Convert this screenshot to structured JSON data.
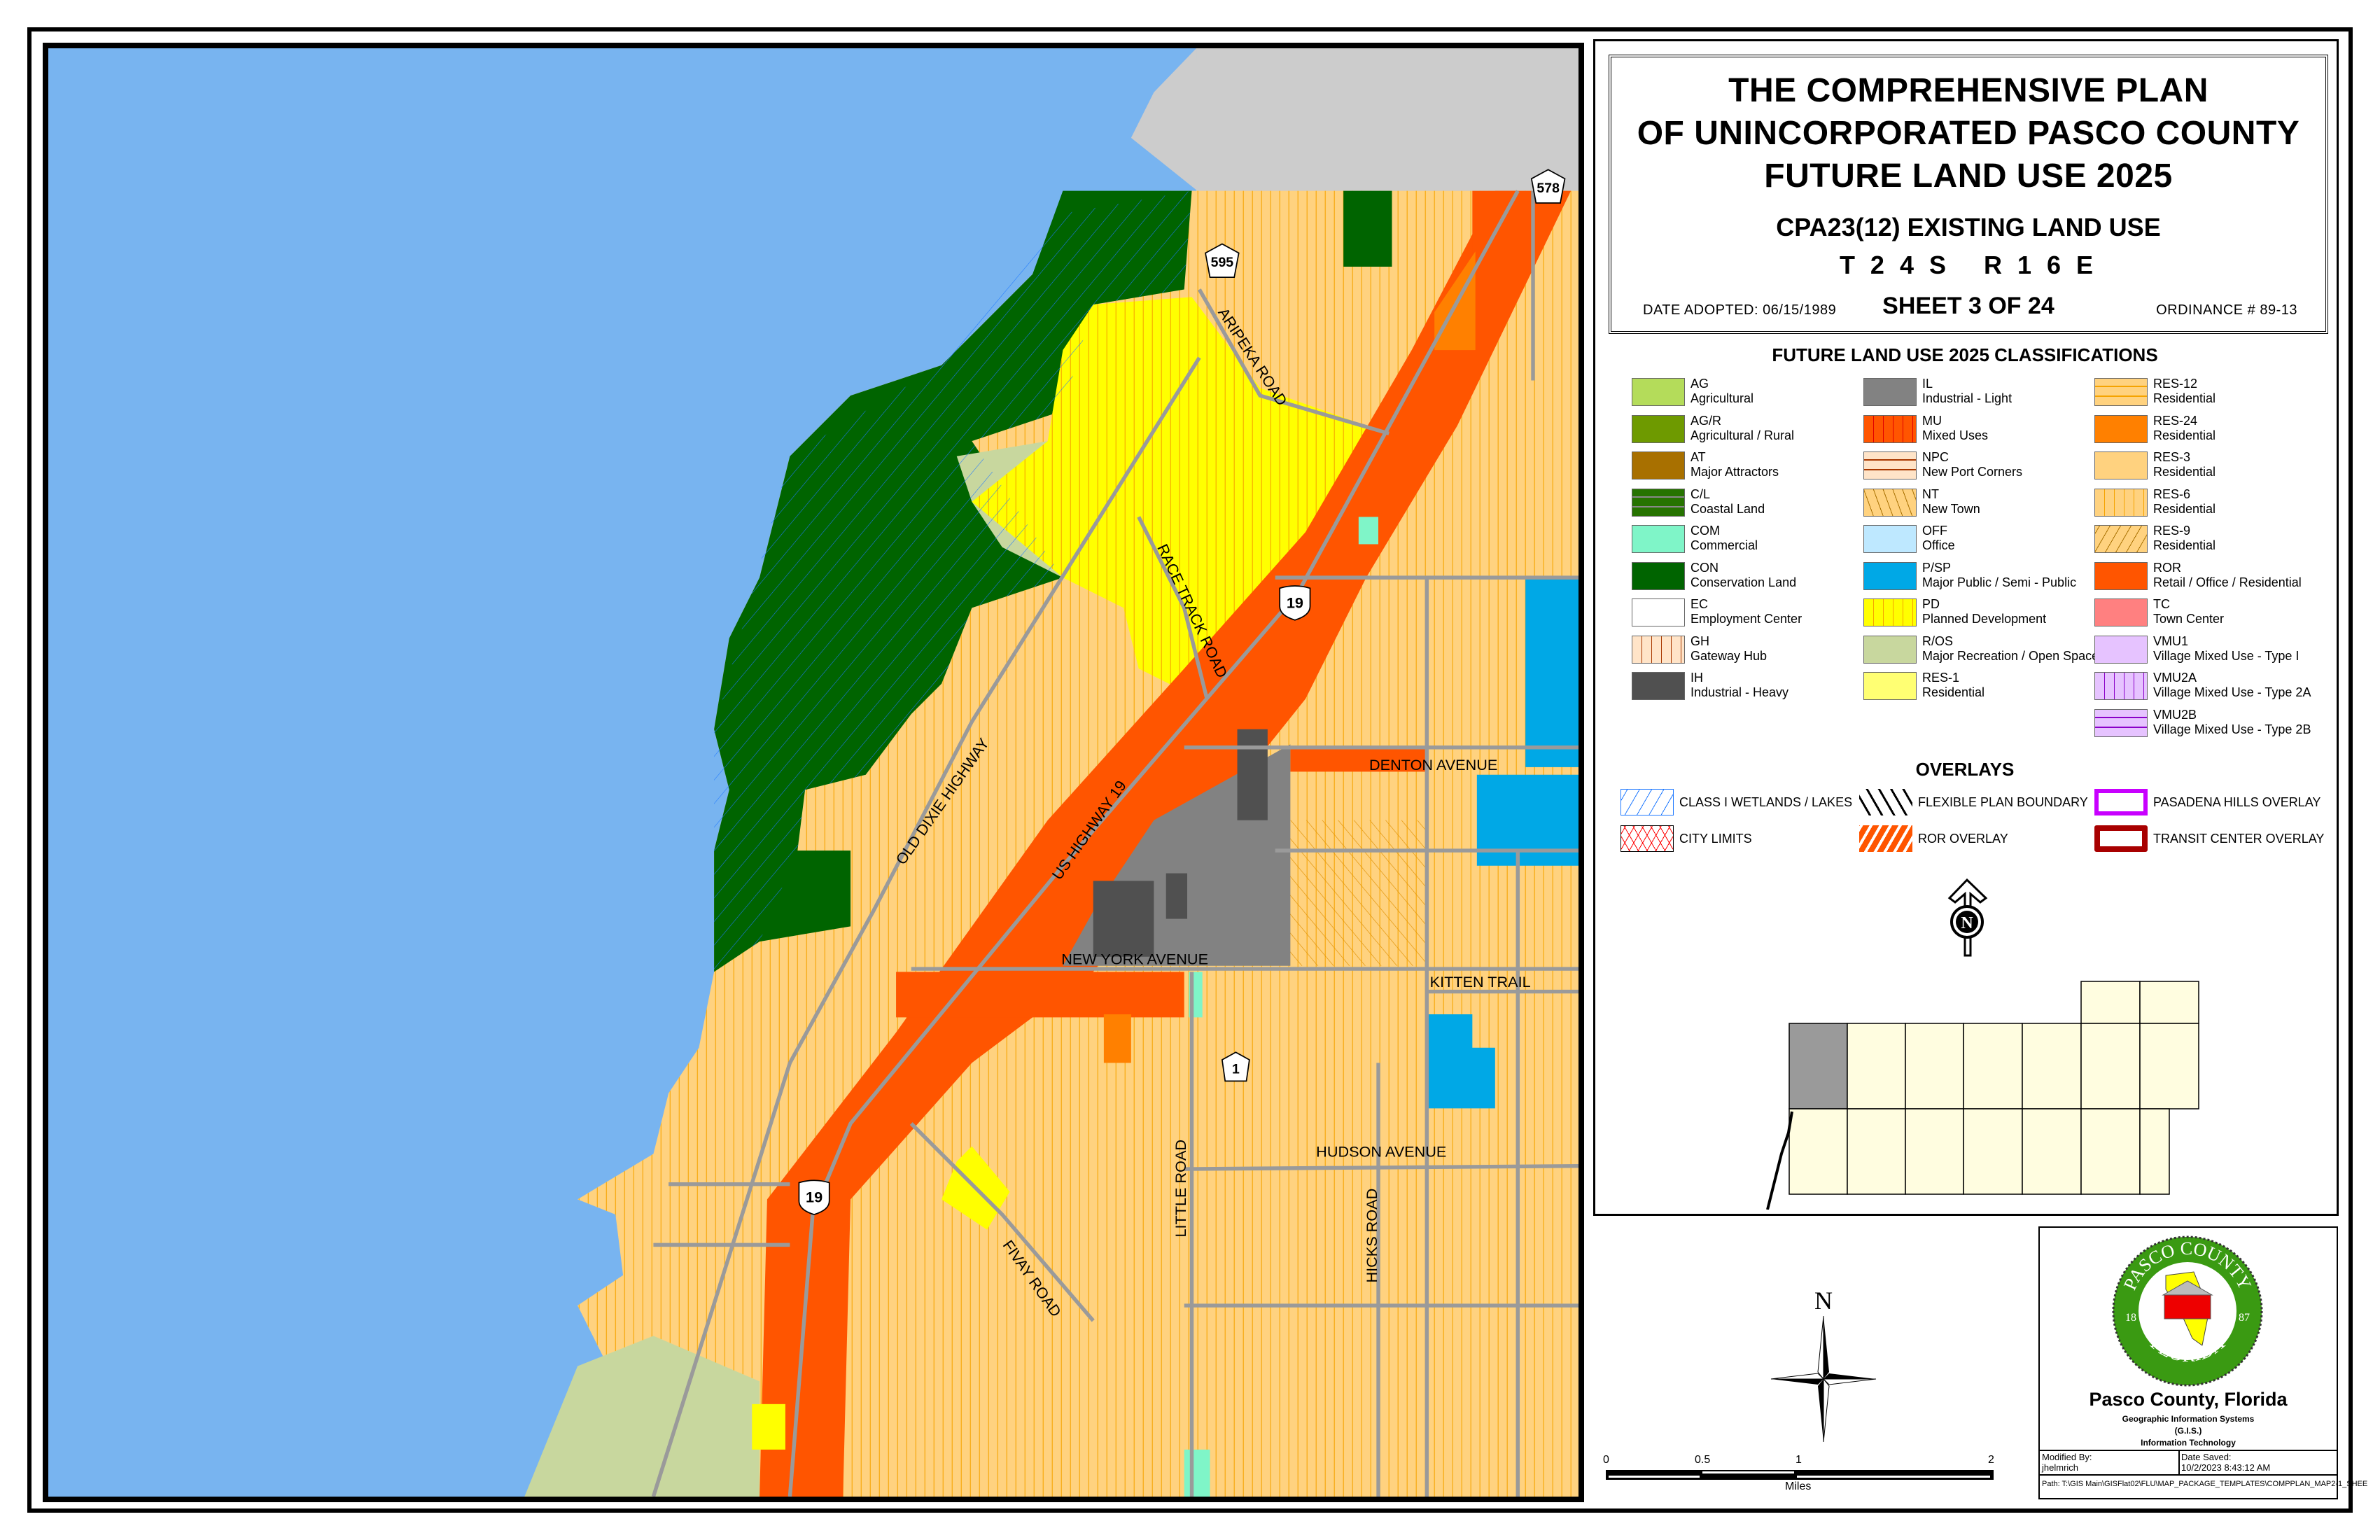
{
  "title": {
    "line1": "THE COMPREHENSIVE PLAN",
    "line2": "OF UNINCORPORATED PASCO COUNTY",
    "line3": "FUTURE LAND USE 2025",
    "subtitle": "CPA23(12) EXISTING LAND USE",
    "township_range": "T 2 4 S   R 1 6 E",
    "sheet": "SHEET 3 OF 24",
    "date_adopted": "DATE ADOPTED: 06/15/1989",
    "ordinance": "ORDINANCE # 89-13"
  },
  "legend": {
    "title": "FUTURE LAND USE 2025 CLASSIFICATIONS",
    "columns": [
      [
        {
          "code": "AG",
          "desc": "Agricultural",
          "color": "#b4dc5a",
          "pattern": "solid"
        },
        {
          "code": "AG/R",
          "desc": "Agricultural / Rural",
          "color": "#6e9a00",
          "pattern": "solid"
        },
        {
          "code": "AT",
          "desc": "Major Attractors",
          "color": "#a87000",
          "pattern": "solid"
        },
        {
          "code": "C/L",
          "desc": "Coastal Land",
          "color": "#267300",
          "pattern": "hlines-gray"
        },
        {
          "code": "COM",
          "desc": "Commercial",
          "color": "#7ff5c8",
          "pattern": "solid"
        },
        {
          "code": "CON",
          "desc": "Conservation Land",
          "color": "#006400",
          "pattern": "solid"
        },
        {
          "code": "EC",
          "desc": "Employment Center",
          "color": "#ffffff",
          "pattern": "solid"
        },
        {
          "code": "GH",
          "desc": "Gateway Hub",
          "color": "#ffe4c8",
          "pattern": "vlines-brown"
        },
        {
          "code": "IH",
          "desc": "Industrial - Heavy",
          "color": "#505050",
          "pattern": "solid"
        }
      ],
      [
        {
          "code": "IL",
          "desc": "Industrial - Light",
          "color": "#828282",
          "pattern": "solid"
        },
        {
          "code": "MU",
          "desc": "Mixed Uses",
          "color": "#ff5500",
          "pattern": "vlines-red"
        },
        {
          "code": "NPC",
          "desc": "New Port Corners",
          "color": "#ffe4c8",
          "pattern": "hlines-brown"
        },
        {
          "code": "NT",
          "desc": "New Town",
          "color": "#ffd27f",
          "pattern": "diag-fwd"
        },
        {
          "code": "OFF",
          "desc": "Office",
          "color": "#bee8ff",
          "pattern": "solid"
        },
        {
          "code": "P/SP",
          "desc": "Major Public / Semi - Public",
          "color": "#00a8e6",
          "pattern": "solid"
        },
        {
          "code": "PD",
          "desc": "Planned Development",
          "color": "#ffff00",
          "pattern": "vlines-orange"
        },
        {
          "code": "R/OS",
          "desc": "Major Recreation / Open Space",
          "color": "#c8d79e",
          "pattern": "solid"
        },
        {
          "code": "RES-1",
          "desc": "Residential",
          "color": "#ffff73",
          "pattern": "solid"
        }
      ],
      [
        {
          "code": "RES-12",
          "desc": "Residential",
          "color": "#ffd27f",
          "pattern": "hlines-orange"
        },
        {
          "code": "RES-24",
          "desc": "Residential",
          "color": "#ff8000",
          "pattern": "solid"
        },
        {
          "code": "RES-3",
          "desc": "Residential",
          "color": "#ffd27f",
          "pattern": "solid"
        },
        {
          "code": "RES-6",
          "desc": "Residential",
          "color": "#ffd27f",
          "pattern": "vlines-orange"
        },
        {
          "code": "RES-9",
          "desc": "Residential",
          "color": "#ffd27f",
          "pattern": "diag-back"
        },
        {
          "code": "ROR",
          "desc": "Retail / Office / Residential",
          "color": "#ff5500",
          "pattern": "solid"
        },
        {
          "code": "TC",
          "desc": "Town Center",
          "color": "#ff8080",
          "pattern": "solid"
        },
        {
          "code": "VMU1",
          "desc": "Village Mixed Use - Type I",
          "color": "#e6c3ff",
          "pattern": "solid"
        },
        {
          "code": "VMU2A",
          "desc": "Village Mixed Use - Type 2A",
          "color": "#e6c3ff",
          "pattern": "vlines-purple"
        },
        {
          "code": "VMU2B",
          "desc": "Village Mixed Use - Type 2B",
          "color": "#e6c3ff",
          "pattern": "hlines-purple"
        }
      ]
    ]
  },
  "overlays": {
    "title": "OVERLAYS",
    "items": [
      {
        "label": "CLASS I WETLANDS / LAKES",
        "style": "wetlands",
        "color": "#1e78ff"
      },
      {
        "label": "FLEXIBLE PLAN BOUNDARY",
        "style": "flex",
        "color": "#000000"
      },
      {
        "label": "PASADENA HILLS OVERLAY",
        "style": "pasadena",
        "color": "#c800ff"
      },
      {
        "label": "CITY LIMITS",
        "style": "city",
        "color": "#ff0000"
      },
      {
        "label": "ROR OVERLAY",
        "style": "ror",
        "color": "#ff5500"
      },
      {
        "label": "TRANSIT CENTER OVERLAY",
        "style": "transit",
        "color": "#a80000"
      }
    ]
  },
  "map": {
    "colors": {
      "water": "#78b4f0",
      "res": "#ffd27f",
      "res_line": "#f5a300",
      "con": "#006400",
      "pd": "#ffff00",
      "ror": "#ff5500",
      "il": "#828282",
      "ih": "#505050",
      "psp": "#00a8e6",
      "road": "#9a9a9a",
      "outside": "#cccccc"
    },
    "road_labels": {
      "aripeka": "ARIPEKA ROAD",
      "race_track": "RACE TRACK ROAD",
      "old_dixie": "OLD DIXIE HIGHWAY",
      "us19": "US HIGHWAY 19",
      "denton": "DENTON AVENUE",
      "new_york": "NEW YORK AVENUE",
      "kitten": "KITTEN TRAIL",
      "hudson": "HUDSON AVENUE",
      "little": "LITTLE ROAD",
      "hicks": "HICKS ROAD",
      "fivay": "FIVAY ROAD"
    },
    "shields": {
      "cr595": "595",
      "cr578": "578",
      "us19_north": "19",
      "us19_south": "19",
      "cr1": "1"
    }
  },
  "north_arrow": {
    "label": "N"
  },
  "scale_bar": {
    "ticks": [
      "0",
      "0.5",
      "1",
      "2"
    ],
    "unit": "Miles"
  },
  "logo": {
    "seal_top": "PASCO COUNTY",
    "seal_bottom": "FLORIDA",
    "seal_year_left": "18",
    "seal_year_right": "87",
    "org": "Pasco County, Florida",
    "dept1": "Geographic Information Systems",
    "dept2": "(G.I.S.)",
    "dept3": "Information Technology",
    "modified_by_label": "Modified By:",
    "modified_by": "jhelmrich",
    "date_saved_label": "Date Saved:",
    "date_saved": "10/2/2023 8:43:12 AM",
    "path": "Path: T:\\GIS Main\\GISFlat02\\FLU\\MAP_PACKAGE_TEMPLATES\\COMPPLAN_MAP2-1_SHEE"
  }
}
